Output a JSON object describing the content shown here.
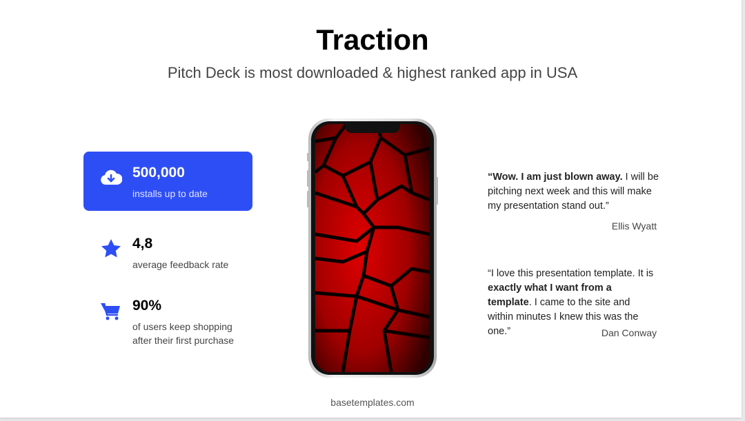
{
  "title": "Traction",
  "subtitle": "Pitch Deck is most downloaded & highest ranked app in USA",
  "accent": "#2e4ef5",
  "stats": [
    {
      "icon": "cloud-download-icon",
      "value": "500,000",
      "label": "installs up to date"
    },
    {
      "icon": "star-icon",
      "value": "4,8",
      "label": "average feedback rate"
    },
    {
      "icon": "shopping-cart-icon",
      "value": "90%",
      "label_line1": "of users keep shopping",
      "label_line2": "after their first purchase"
    }
  ],
  "testimonials": [
    {
      "bold": "“Wow. I am just blown away.",
      "rest": " I will be pitching next week and this will make my presentation stand out.”",
      "author": "Ellis Wyatt"
    },
    {
      "pre": "“I love this presentation template. It is ",
      "bold": "exactly what I want from a template",
      "post": ". I came to the site and within minutes I knew this was the one.”",
      "author": "Dan Conway"
    }
  ],
  "footer": "basetemplates.com"
}
